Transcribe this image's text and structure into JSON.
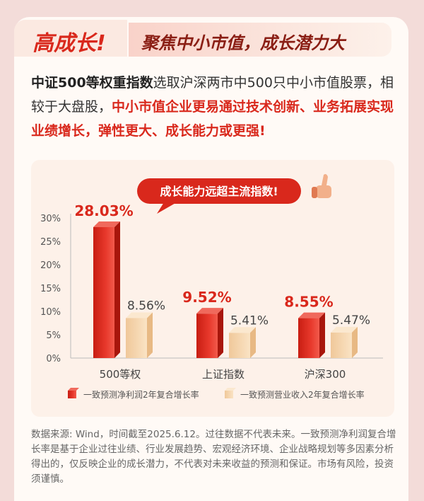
{
  "header": {
    "tag": "高成长!",
    "banner": "聚焦中小市值，成长潜力大"
  },
  "intro": {
    "part1_bold": "中证500等权重指数",
    "part2": "选取沪深两市中500只中小市值股票，相较于大盘股，",
    "part3_red": "中小市值企业更易通过技术创新、业务拓展实现业绩增长，弹性更大、成长能力或更强!"
  },
  "callout": "成长能力远超主流指数!",
  "chart_data": {
    "type": "bar",
    "categories": [
      "500等权",
      "上证指数",
      "沪深300"
    ],
    "series": [
      {
        "name": "一致预测净利润2年复合增长率",
        "values": [
          28.03,
          9.52,
          8.55
        ],
        "labels": [
          "28.03%",
          "9.52%",
          "8.55%"
        ],
        "color": "#d9281c"
      },
      {
        "name": "一致预测营业收入2年复合增长率",
        "values": [
          8.56,
          5.41,
          5.47
        ],
        "labels": [
          "8.56%",
          "5.41%",
          "5.47%"
        ],
        "color": "#f5d7ae"
      }
    ],
    "yticks": [
      "0%",
      "5%",
      "10%",
      "15%",
      "20%",
      "25%",
      "30%"
    ],
    "ylim": [
      0,
      30
    ],
    "legend": "bottom"
  },
  "source_note": "数据来源: Wind，时间截至2025.6.12。过往数据不代表未来。一致预测净利润复合增长率是基于企业过往业绩、行业发展趋势、宏观经济环境、企业战略规划等多因素分析得出的，仅反映企业的成长潜力，不代表对未来收益的预测和保证。市场有风险，投资须谨慎。"
}
